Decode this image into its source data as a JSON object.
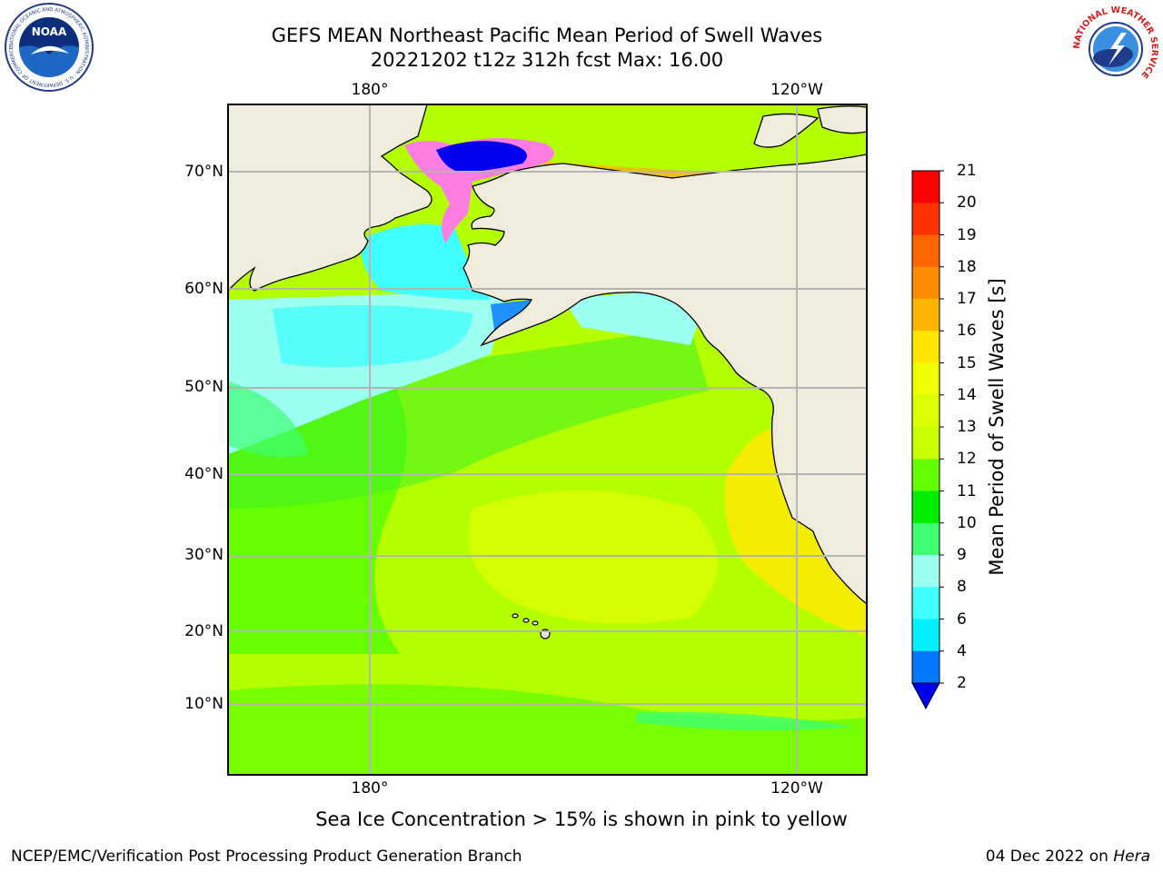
{
  "title": {
    "line1": "GEFS MEAN Northeast Pacific Mean Period of Swell Waves",
    "line2": "20221202 t12z 312h fcst   Max: 16.00"
  },
  "map": {
    "longitude_labels": [
      "180°",
      "120°W"
    ],
    "latitude_labels": [
      "70°N",
      "60°N",
      "50°N",
      "40°N",
      "30°N",
      "20°N",
      "10°N"
    ],
    "colors": {
      "land": "#efecdc",
      "grid": "#b4b4b4"
    }
  },
  "colorbar": {
    "title": "Mean Period of Swell Waves [s]",
    "labels": [
      "21",
      "20",
      "19",
      "18",
      "17",
      "16",
      "15",
      "14",
      "13",
      "12",
      "11",
      "10",
      "9",
      "8",
      "6",
      "4",
      "2"
    ],
    "colors": [
      "#ff0000",
      "#ff3200",
      "#ff6400",
      "#ff8c00",
      "#ffb400",
      "#ffe600",
      "#f0ff00",
      "#dcff00",
      "#c8ff00",
      "#64ff00",
      "#00ee00",
      "#40ff70",
      "#9cfff0",
      "#40ffff",
      "#00f0ff",
      "#0078ff",
      "#0000f0"
    ],
    "under_color": "#0000f0"
  },
  "caption": "Sea Ice Concentration > 15% is shown in pink to yellow",
  "footer": {
    "left": "NCEP/EMC/Verification Post Processing Product Generation Branch",
    "date": "04 Dec 2022 on",
    "machine": "Hera"
  },
  "logos": {
    "noaa_text": "NOAA",
    "noaa_ring": "NATIONAL OCEANIC AND ATMOSPHERIC ADMINISTRATION · U.S. DEPARTMENT OF COMMERCE",
    "nws_ring": "NATIONAL WEATHER SERVICE"
  }
}
